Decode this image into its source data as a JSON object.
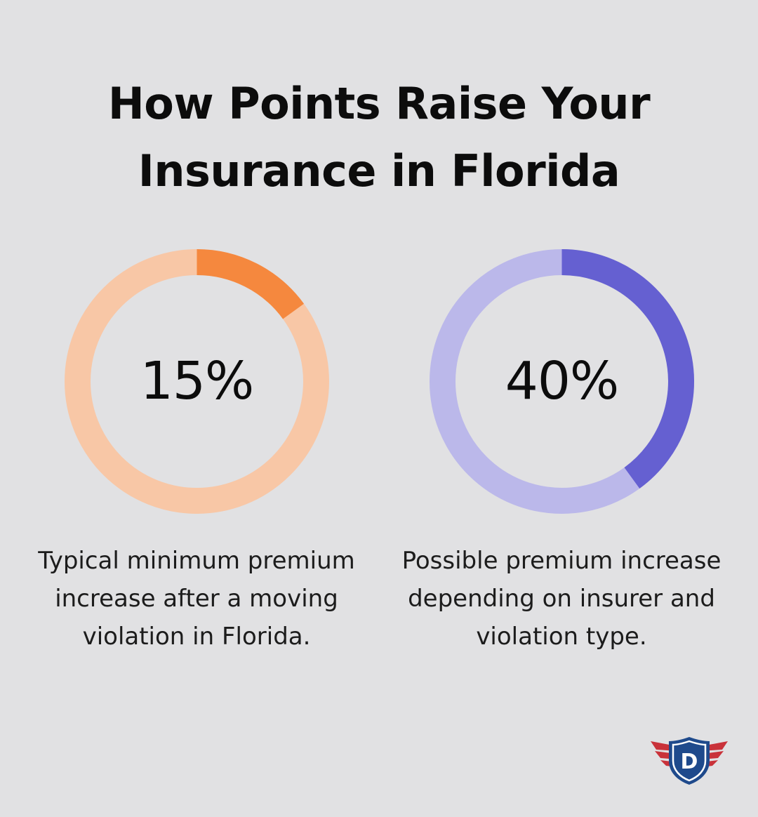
{
  "title_lines": [
    "How Points Raise Your",
    "Insurance in Florida"
  ],
  "chart_data": [
    {
      "type": "pie",
      "value": 15,
      "label": "15%",
      "caption": "Typical minimum premium increase after a moving violation in Florida.",
      "colors": {
        "fill": "#f5883e",
        "track": "#f8c7a6"
      }
    },
    {
      "type": "pie",
      "value": 40,
      "label": "40%",
      "caption": "Possible premium increase depending on insurer and violation type.",
      "colors": {
        "fill": "#6560d1",
        "track": "#bbb8ea"
      }
    }
  ],
  "logo": {
    "letter": "D",
    "icon": "winged-shield-icon",
    "colors": {
      "shield": "#1f4a8c",
      "wing": "#c9323a",
      "trim": "#ffffff"
    }
  }
}
